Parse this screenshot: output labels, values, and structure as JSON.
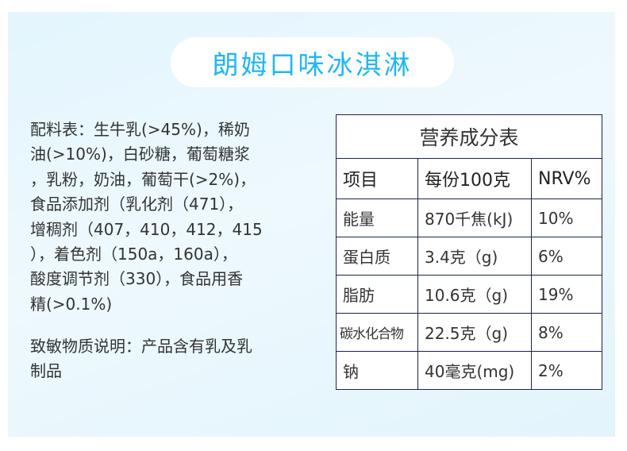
{
  "title": "朗姆口味冰淇淋",
  "ingredients": {
    "lines": [
      "配料表：生牛乳(>45%)，稀奶",
      "油(>10%)，白砂糖，葡萄糖浆",
      "，乳粉，奶油，葡萄干(>2%)，",
      "食品添加剂（乳化剂（471），",
      "增稠剂（407，410，412，415",
      "），着色剂（150a，160a），",
      "酸度调节剂（330），食品用香",
      "精(>0.1%)"
    ]
  },
  "allergy": {
    "lines": [
      "致敏物质说明：产品含有乳及乳",
      "制品"
    ]
  },
  "nutrition": {
    "title": "营养成分表",
    "headers": [
      "项目",
      "每份100克",
      "NRV%"
    ],
    "rows": [
      [
        "能量",
        "870千焦(kJ)",
        "10%"
      ],
      [
        "蛋白质",
        "3.4克（g)",
        "6%"
      ],
      [
        "脂肪",
        "10.6克（g)",
        "19%"
      ],
      [
        "碳水化合物",
        "22.5克（g)",
        "8%"
      ],
      [
        "钠",
        "40毫克(mg)",
        "2%"
      ]
    ]
  },
  "colors": {
    "accent": "#22b6f2",
    "table_border": "#1c2350",
    "panel_bg": "#e3f5fd"
  }
}
